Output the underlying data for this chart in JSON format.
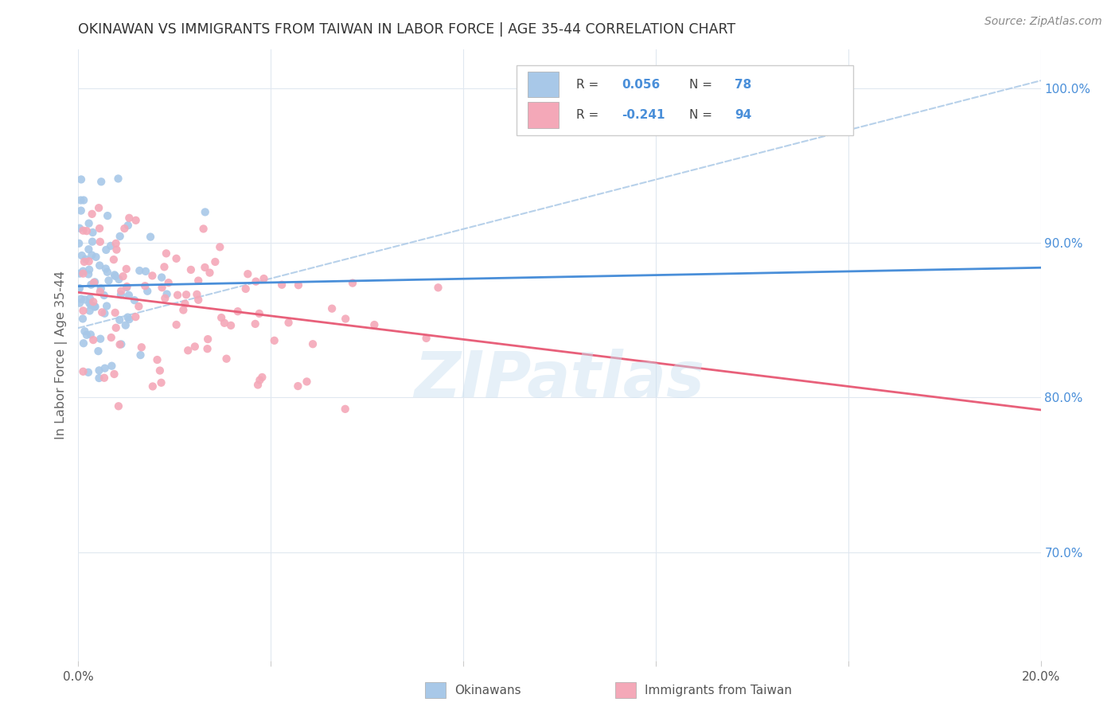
{
  "title": "OKINAWAN VS IMMIGRANTS FROM TAIWAN IN LABOR FORCE | AGE 35-44 CORRELATION CHART",
  "source": "Source: ZipAtlas.com",
  "ylabel": "In Labor Force | Age 35-44",
  "blue_R": 0.056,
  "blue_N": 78,
  "pink_R": -0.241,
  "pink_N": 94,
  "blue_color": "#a8c8e8",
  "pink_color": "#f4a8b8",
  "blue_line_color": "#4a8fd9",
  "pink_line_color": "#e8607a",
  "blue_dash_color": "#b0cce8",
  "right_tick_color": "#4a8fd9",
  "xlim": [
    0.0,
    0.2
  ],
  "ylim": [
    0.63,
    1.025
  ],
  "yticks_right": [
    0.7,
    0.8,
    0.9,
    1.0
  ],
  "ytick_right_labels": [
    "70.0%",
    "80.0%",
    "90.0%",
    "100.0%"
  ],
  "watermark": "ZIPatlas",
  "dashed_line": [
    [
      0.0,
      0.2
    ],
    [
      0.845,
      1.005
    ]
  ],
  "blue_trend_line": [
    [
      0.0,
      0.2
    ],
    [
      0.872,
      0.884
    ]
  ],
  "pink_trend_line": [
    [
      0.0,
      0.2
    ],
    [
      0.868,
      0.792
    ]
  ]
}
